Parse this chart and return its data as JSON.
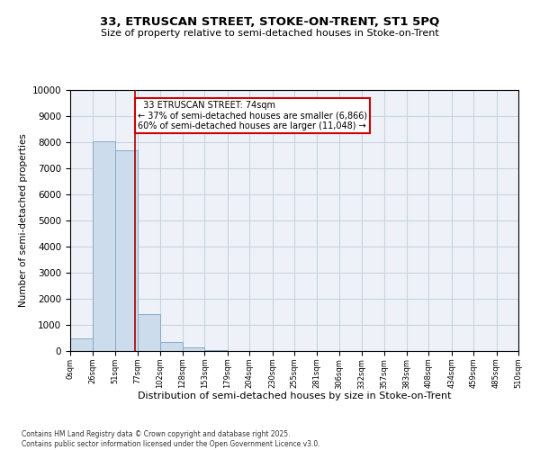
{
  "title": "33, ETRUSCAN STREET, STOKE-ON-TRENT, ST1 5PQ",
  "subtitle": "Size of property relative to semi-detached houses in Stoke-on-Trent",
  "xlabel": "Distribution of semi-detached houses by size in Stoke-on-Trent",
  "ylabel": "Number of semi-detached properties",
  "property_size": 74,
  "property_label": "33 ETRUSCAN STREET: 74sqm",
  "smaller_pct": 37,
  "smaller_count": 6866,
  "larger_pct": 60,
  "larger_count": 11048,
  "bin_edges": [
    0,
    26,
    51,
    77,
    102,
    128,
    153,
    179,
    204,
    230,
    255,
    281,
    306,
    332,
    357,
    383,
    408,
    434,
    459,
    485,
    510
  ],
  "bar_heights": [
    500,
    8050,
    7700,
    1400,
    330,
    130,
    50,
    10,
    5,
    2,
    1,
    0,
    0,
    0,
    0,
    0,
    0,
    0,
    0,
    0
  ],
  "bar_color": "#ccdcec",
  "bar_edgecolor": "#88aac8",
  "vline_color": "#aa0000",
  "annotation_edgecolor": "#cc0000",
  "grid_color": "#c8d4e0",
  "background_color": "#eef2f8",
  "footer_text": "Contains HM Land Registry data © Crown copyright and database right 2025.\nContains public sector information licensed under the Open Government Licence v3.0.",
  "ylim": [
    0,
    10000
  ],
  "tick_labels": [
    "0sqm",
    "26sqm",
    "51sqm",
    "77sqm",
    "102sqm",
    "128sqm",
    "153sqm",
    "179sqm",
    "204sqm",
    "230sqm",
    "255sqm",
    "281sqm",
    "306sqm",
    "332sqm",
    "357sqm",
    "383sqm",
    "408sqm",
    "434sqm",
    "459sqm",
    "485sqm",
    "510sqm"
  ]
}
